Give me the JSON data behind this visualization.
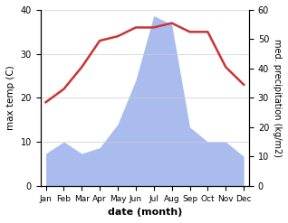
{
  "months": [
    "Jan",
    "Feb",
    "Mar",
    "Apr",
    "May",
    "Jun",
    "Jul",
    "Aug",
    "Sep",
    "Oct",
    "Nov",
    "Dec"
  ],
  "temperature": [
    19,
    22,
    27,
    33,
    34,
    36,
    36,
    37,
    35,
    35,
    27,
    23
  ],
  "precipitation": [
    11,
    15,
    11,
    13,
    21,
    36,
    58,
    55,
    20,
    15,
    15,
    10
  ],
  "temp_color": "#cc3333",
  "precip_color": "#aabbee",
  "left_ylim": [
    0,
    40
  ],
  "right_ylim": [
    0,
    60
  ],
  "left_ylabel": "max temp (C)",
  "right_ylabel": "med. precipitation (kg/m2)",
  "xlabel": "date (month)",
  "temp_linewidth": 1.8,
  "background_color": "#ffffff"
}
